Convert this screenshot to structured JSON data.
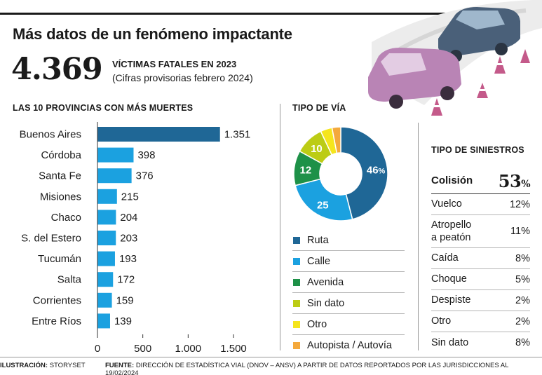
{
  "header": {
    "title": "Más datos de un fenómeno impactante",
    "big_number": "4.369",
    "kpi_label": "VÍCTIMAS FATALES EN 2023",
    "kpi_note": "(Cifras provisorias febrero 2024)"
  },
  "sections": {
    "provinces_title": "LAS 10 PROVINCIAS CON MÁS MUERTES",
    "via_title": "TIPO DE VÍA",
    "siniestros_title": "TIPO DE SINIESTROS"
  },
  "chart_data": [
    {
      "type": "bar",
      "orientation": "horizontal",
      "title": "LAS 10 PROVINCIAS CON MÁS MUERTES",
      "categories": [
        "Buenos Aires",
        "Córdoba",
        "Santa Fe",
        "Misiones",
        "Chaco",
        "S. del Estero",
        "Tucumán",
        "Salta",
        "Corrientes",
        "Entre Ríos"
      ],
      "values": [
        1351,
        398,
        376,
        215,
        204,
        203,
        193,
        172,
        159,
        139
      ],
      "value_labels": [
        "1.351",
        "398",
        "376",
        "215",
        "204",
        "203",
        "193",
        "172",
        "159",
        "139"
      ],
      "xlim": [
        0,
        1500
      ],
      "xticks": [
        0,
        500,
        1000,
        1500
      ],
      "xtick_labels": [
        "0",
        "500",
        "1.000",
        "1.500"
      ],
      "grid": false,
      "colors": {
        "highlight": "#1f6796",
        "default": "#1ba1e0"
      }
    },
    {
      "type": "pie",
      "donut": true,
      "title": "TIPO DE VÍA",
      "labels": [
        "Ruta",
        "Calle",
        "Avenida",
        "Sin dato",
        "Otro",
        "Autopista / Autovía"
      ],
      "values": [
        46,
        25,
        12,
        10,
        4,
        3
      ],
      "slice_labels": [
        "46",
        "25",
        "12",
        "10",
        "",
        ""
      ],
      "percent_suffix": "%",
      "colors": [
        "#1f6796",
        "#1ba1e0",
        "#1e9148",
        "#bccc15",
        "#f5e51d",
        "#f4a93c"
      ],
      "legend_position": "bottom"
    },
    {
      "type": "table",
      "title": "TIPO DE SINIESTROS",
      "rows": [
        {
          "label": "Colisión",
          "value": "53",
          "suffix": "%"
        },
        {
          "label": "Vuelco",
          "value": "12%"
        },
        {
          "label": "Atropello a peatón",
          "value": "11%"
        },
        {
          "label": "Caída",
          "value": "8%"
        },
        {
          "label": "Choque",
          "value": "5%"
        },
        {
          "label": "Despiste",
          "value": "2%"
        },
        {
          "label": "Otro",
          "value": "2%"
        },
        {
          "label": "Sin dato",
          "value": "8%"
        }
      ]
    }
  ],
  "footer": {
    "illustration_label": "ILUSTRACIÓN:",
    "illustration_value": "STORYSET",
    "source_label": "FUENTE:",
    "source_value": "DIRECCIÓN DE ESTADÍSTICA VIAL (DNOV – ANSV) A PARTIR DE DATOS REPORTADOS POR LAS JURISDICCIONES AL 19/02/2024"
  }
}
